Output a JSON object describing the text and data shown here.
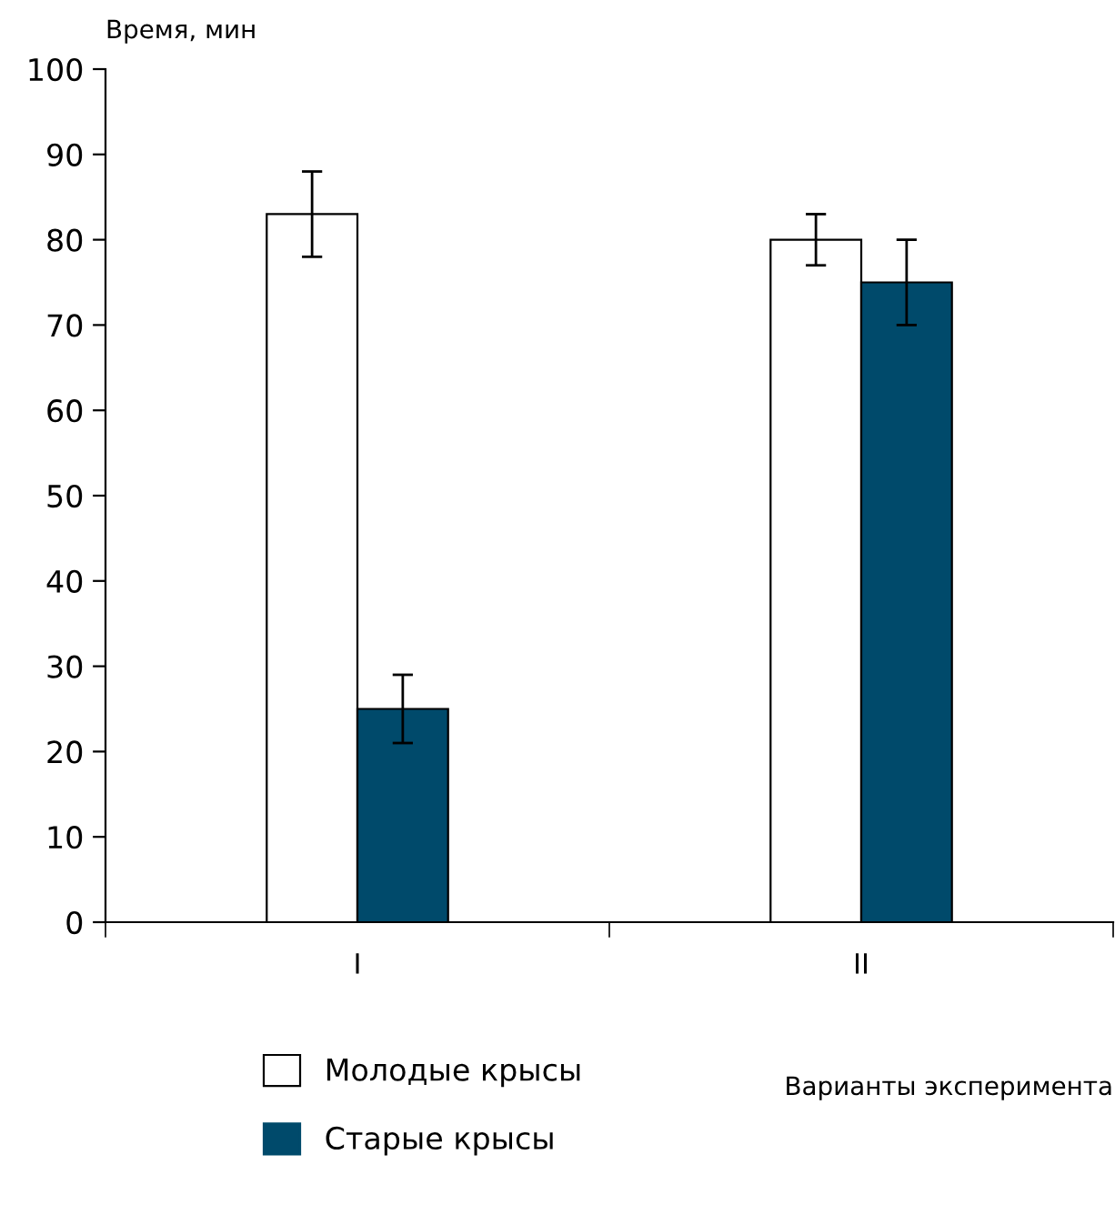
{
  "chart_data": {
    "type": "bar",
    "ylabel": "Время, мин",
    "xlabel": "Варианты эксперимента",
    "categories": [
      "I",
      "II"
    ],
    "series": [
      {
        "name": "Молодые крысы",
        "color": "#ffffff",
        "values": [
          83,
          80
        ],
        "errors": [
          5,
          3
        ]
      },
      {
        "name": "Старые крысы",
        "color": "#004a6b",
        "values": [
          25,
          75
        ],
        "errors": [
          4,
          5
        ]
      }
    ],
    "ylim": [
      0,
      100
    ],
    "yticks": [
      0,
      10,
      20,
      30,
      40,
      50,
      60,
      70,
      80,
      90,
      100
    ],
    "grid": false,
    "legend": "bottom"
  }
}
